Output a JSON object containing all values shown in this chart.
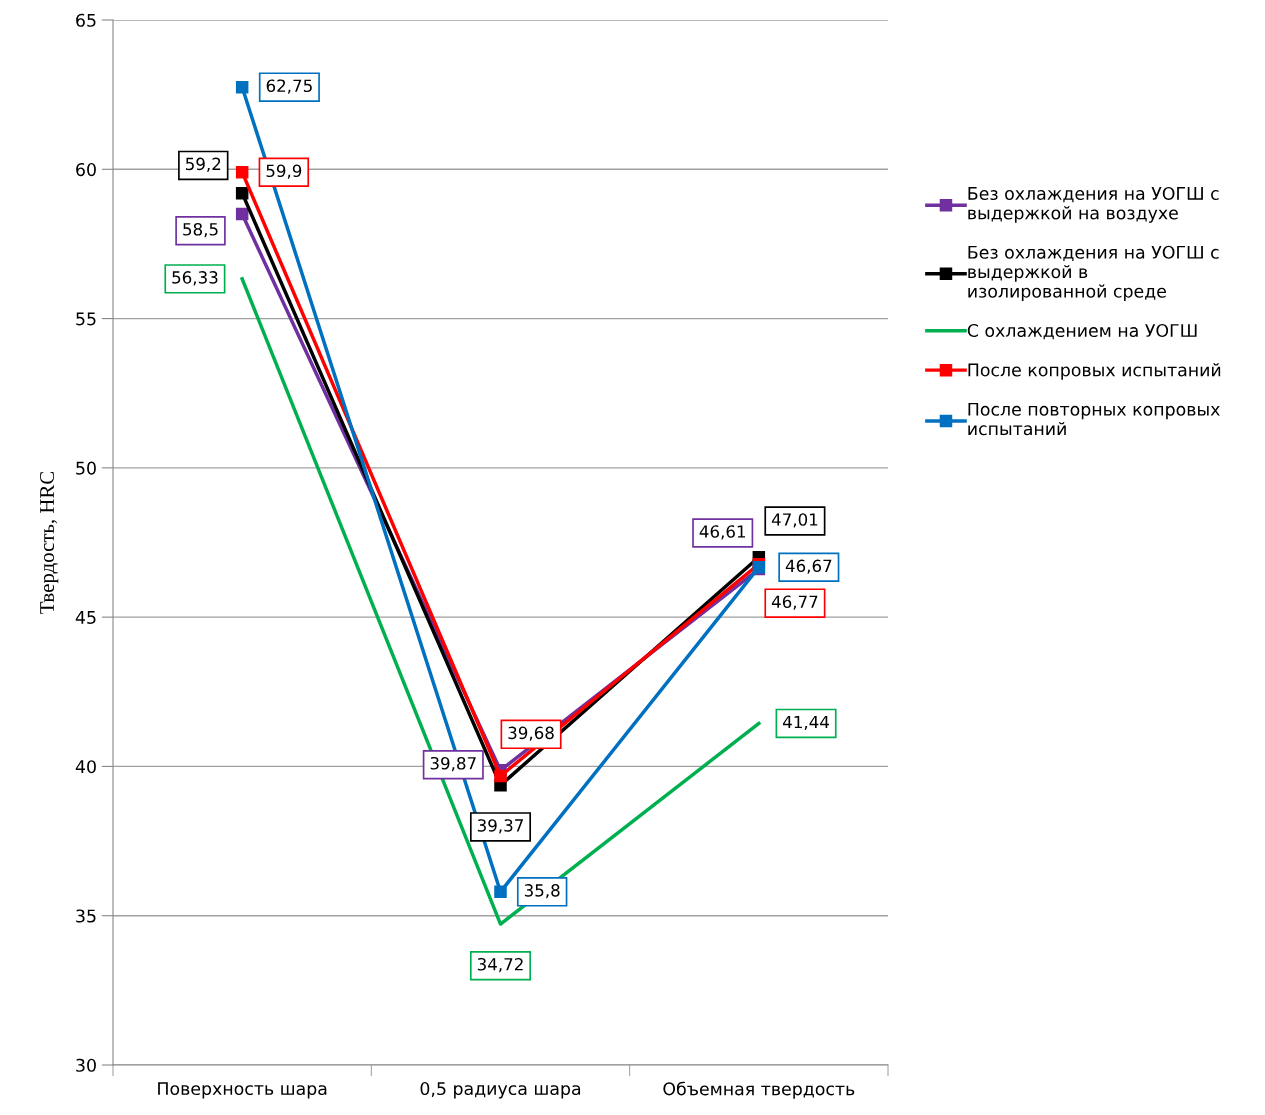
{
  "chart_data": {
    "type": "line",
    "ylabel": "Твердость, HRC",
    "categories": [
      "Поверхность шара",
      "0,5 радиуса шара",
      "Объемная твердость"
    ],
    "series": [
      {
        "name": "Без охлаждения на УОГШ с выдержкой на воздухе",
        "color": "#7030a0",
        "marker": "square",
        "values": [
          58.5,
          39.87,
          46.61
        ],
        "value_labels": [
          "58,5",
          "39,87",
          "46,61"
        ]
      },
      {
        "name": "Без охлаждения на УОГШ с выдержкой в изолированной среде",
        "color": "#000000",
        "marker": "square",
        "values": [
          59.2,
          39.37,
          47.01
        ],
        "value_labels": [
          "59,2",
          "39,37",
          "47,01"
        ]
      },
      {
        "name": "С охлаждением на УОГШ",
        "color": "#00b050",
        "marker": "none",
        "values": [
          56.33,
          34.72,
          41.44
        ],
        "value_labels": [
          "56,33",
          "34,72",
          "41,44"
        ]
      },
      {
        "name": "После копровых испытаний",
        "color": "#ff0000",
        "marker": "square",
        "values": [
          59.9,
          39.68,
          46.77
        ],
        "value_labels": [
          "59,9",
          "39,68",
          "46,77"
        ]
      },
      {
        "name": "После повторных копровых испытаний",
        "color": "#0070c0",
        "marker": "square",
        "values": [
          62.75,
          35.8,
          46.67
        ],
        "value_labels": [
          "62,75",
          "35,8",
          "46,67"
        ]
      }
    ],
    "ylim": [
      30,
      65
    ],
    "yticks": [
      30,
      35,
      40,
      45,
      50,
      55,
      60,
      65
    ],
    "grid": "y",
    "legend": "right",
    "data_labels": true,
    "line_style": "solid"
  }
}
